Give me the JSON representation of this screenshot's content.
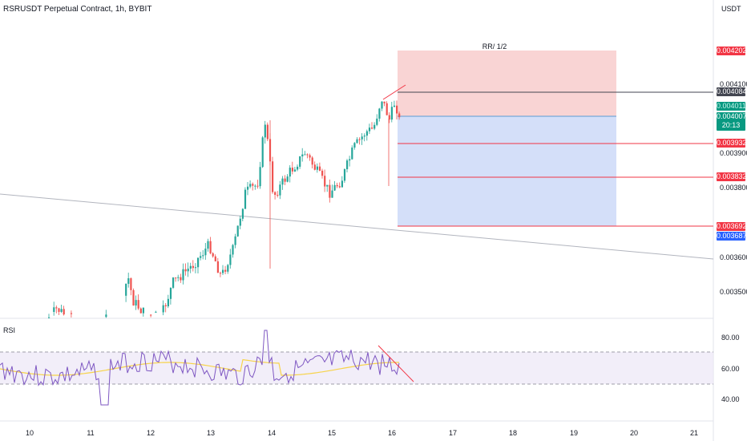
{
  "header": {
    "title": "RSRUSDT Perpetual Contract, 1h, BYBIT",
    "currency": "USDT"
  },
  "price_axis": {
    "ticks": [
      "0.004100",
      "0.003900",
      "0.003800",
      "0.003600",
      "0.003500"
    ]
  },
  "price_tags": {
    "target": "0.004202",
    "last_high": "0.004084",
    "current_hidden": "0.004011",
    "current": "0.004007",
    "countdown": "20:13",
    "level_1": "0.003932",
    "level_2": "0.003832",
    "stop": "0.003692",
    "blue_level": "0.003687"
  },
  "position_tool": {
    "label": "RR/ 1/2"
  },
  "rsi": {
    "label": "RSI",
    "ticks": [
      "80.00",
      "60.00",
      "40.00"
    ]
  },
  "time_axis": {
    "dates": [
      "10",
      "11",
      "12",
      "13",
      "14",
      "15",
      "16",
      "17",
      "18",
      "19",
      "20",
      "21"
    ]
  },
  "colors": {
    "up": "#26a69a",
    "down": "#ef5350",
    "rsi_line": "#7e57c2",
    "rsi_ma": "#f7d34a",
    "target_zone": "#f7c5c5",
    "stop_zone": "#c5d4f7",
    "tag_red": "#f23645",
    "tag_green": "#089981",
    "tag_blue": "#2962ff",
    "tag_gray": "#434651"
  }
}
